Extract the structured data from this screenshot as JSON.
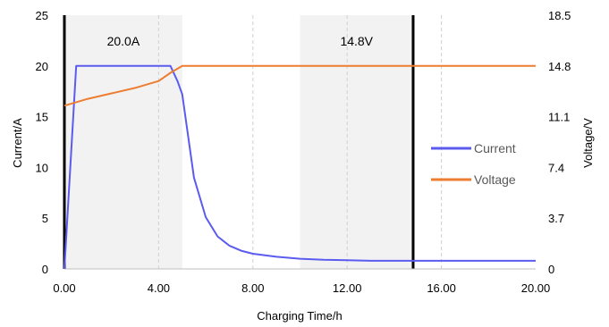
{
  "chart_data": {
    "type": "line",
    "title": "",
    "xlabel": "Charging Time/h",
    "ylabel": "Current/A",
    "y2label": "Voltage/V",
    "xlim": [
      0,
      20
    ],
    "ylim": [
      0,
      25
    ],
    "y2lim": [
      0,
      18.5
    ],
    "x_ticks": [
      "0.00",
      "4.00",
      "8.00",
      "12.00",
      "16.00",
      "20.00"
    ],
    "x_tick_values": [
      0,
      4,
      8,
      12,
      16,
      20
    ],
    "y_ticks": [
      "0",
      "5",
      "10",
      "15",
      "20",
      "25"
    ],
    "y_tick_values": [
      0,
      5,
      10,
      15,
      20,
      25
    ],
    "y2_ticks": [
      "0",
      "3.7",
      "7.4",
      "11.1",
      "14.8",
      "18.5"
    ],
    "y2_tick_values": [
      0,
      3.7,
      7.4,
      11.1,
      14.8,
      18.5
    ],
    "grid": "vertical dashed",
    "legend_position": "right",
    "regions": [
      {
        "label": "20.0A",
        "x_start": 0,
        "x_end": 5.0
      },
      {
        "label": "14.8V",
        "x_start": 10.0,
        "x_end": 14.8
      }
    ],
    "divider_x": [
      0,
      14.8
    ],
    "series": [
      {
        "name": "Current",
        "axis": "left",
        "color": "#5b5bf0",
        "x": [
          0,
          0.5,
          1,
          2,
          3,
          4,
          4.5,
          4.8,
          5.0,
          5.5,
          6.0,
          6.5,
          7.0,
          7.5,
          8.0,
          9.0,
          10.0,
          11.0,
          12.0,
          13.0,
          14.0,
          15.0,
          16.0,
          17.0,
          18.0,
          19.0,
          20.0
        ],
        "values": [
          0,
          20,
          20,
          20,
          20,
          20,
          20,
          18.5,
          17.2,
          9.0,
          5.1,
          3.2,
          2.3,
          1.8,
          1.5,
          1.2,
          1.0,
          0.9,
          0.85,
          0.8,
          0.8,
          0.8,
          0.8,
          0.8,
          0.8,
          0.8,
          0.8
        ]
      },
      {
        "name": "Voltage",
        "axis": "right",
        "color": "#ed7d31",
        "x": [
          0,
          1,
          2,
          3,
          4,
          4.5,
          5.0,
          5.5,
          8,
          12,
          16,
          20
        ],
        "values": [
          11.9,
          12.4,
          12.8,
          13.2,
          13.7,
          14.3,
          14.8,
          14.8,
          14.8,
          14.8,
          14.8,
          14.8
        ]
      }
    ]
  }
}
